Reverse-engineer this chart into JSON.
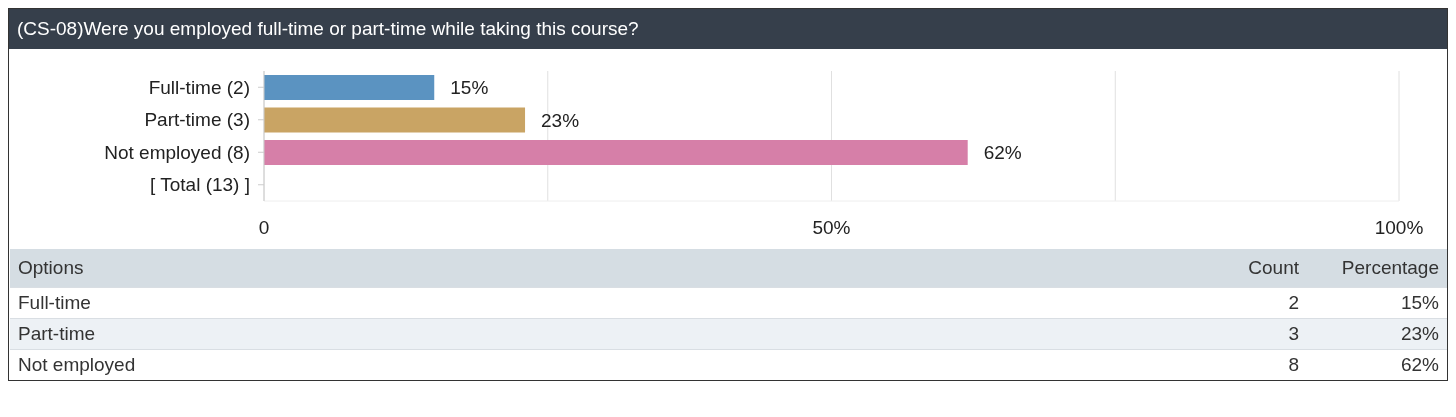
{
  "chart_data": [
    {
      "type": "bar",
      "orientation": "horizontal",
      "title": "(CS-08)Were you employed full-time or part-time while taking this course?",
      "categories": [
        "Full-time (2)",
        "Part-time (3)",
        "Not employed (8)",
        "[ Total (13) ]"
      ],
      "values": [
        15,
        23,
        62,
        null
      ],
      "colors": [
        "#5b93c1",
        "#c9a464",
        "#d67fa8",
        "#999999"
      ],
      "value_labels": [
        "15%",
        "23%",
        "62%",
        null
      ],
      "xlim": [
        0,
        100
      ],
      "xticks": [
        0,
        {
          "value": 25,
          "label": null
        },
        {
          "value": 50,
          "label": "50%"
        },
        {
          "value": 75,
          "label": null
        },
        {
          "value": 100,
          "label": "100%"
        }
      ],
      "grid": "x",
      "legend": false
    },
    {
      "type": "other",
      "xlabel": "Options",
      "categories": [
        "Full-time",
        "Part-time",
        "Not employed"
      ],
      "data_labels": true,
      "series": [
        {
          "name": "Count",
          "colors": [
            "#ffffff",
            "#edf1f5",
            "#ffffff"
          ],
          "values": [
            2,
            3,
            8
          ]
        },
        {
          "name": "Percentage",
          "colors": [
            "#ffffff",
            "#edf1f5",
            "#ffffff"
          ],
          "values": [
            15,
            23,
            62
          ],
          "value_labels": [
            "15%",
            "23%",
            "62%"
          ]
        }
      ]
    }
  ]
}
